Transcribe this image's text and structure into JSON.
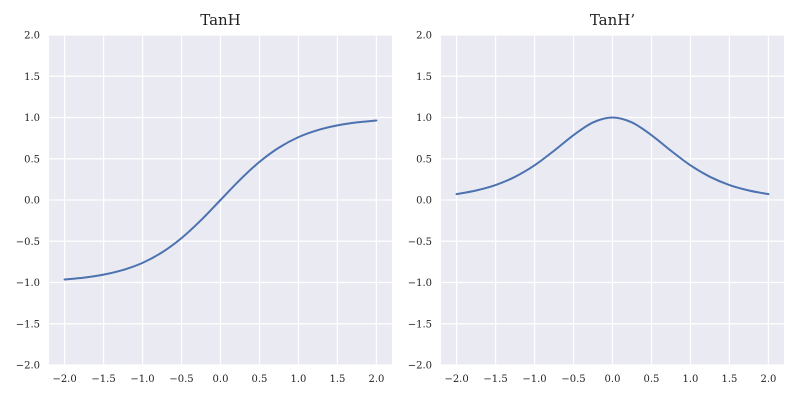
{
  "chart_data": [
    {
      "type": "line",
      "title": "TanH",
      "xlabel": "",
      "ylabel": "",
      "xlim": [
        -2.2,
        2.2
      ],
      "ylim": [
        -2.0,
        2.0
      ],
      "grid": true,
      "xticks": [
        -2.0,
        -1.5,
        -1.0,
        -0.5,
        0.0,
        0.5,
        1.0,
        1.5,
        2.0
      ],
      "xtick_labels": [
        "−2.0",
        "−1.5",
        "−1.0",
        "−0.5",
        "0.0",
        "0.5",
        "1.0",
        "1.5",
        "2.0"
      ],
      "yticks": [
        -2.0,
        -1.5,
        -1.0,
        -0.5,
        0.0,
        0.5,
        1.0,
        1.5,
        2.0
      ],
      "ytick_labels": [
        "−2.0",
        "−1.5",
        "−1.0",
        "−0.5",
        "0.0",
        "0.5",
        "1.0",
        "1.5",
        "2.0"
      ],
      "series": [
        {
          "color": "#4c72b0",
          "x": [
            -2.0,
            -1.75,
            -1.5,
            -1.25,
            -1.0,
            -0.75,
            -0.5,
            -0.25,
            0.0,
            0.25,
            0.5,
            0.75,
            1.0,
            1.25,
            1.5,
            1.75,
            2.0
          ],
          "y": [
            -0.964,
            -0.941,
            -0.905,
            -0.848,
            -0.762,
            -0.635,
            -0.462,
            -0.245,
            0.0,
            0.245,
            0.462,
            0.635,
            0.762,
            0.848,
            0.905,
            0.941,
            0.964
          ]
        }
      ]
    },
    {
      "type": "line",
      "title": "TanH’",
      "xlabel": "",
      "ylabel": "",
      "xlim": [
        -2.2,
        2.2
      ],
      "ylim": [
        -2.0,
        2.0
      ],
      "grid": true,
      "xticks": [
        -2.0,
        -1.5,
        -1.0,
        -0.5,
        0.0,
        0.5,
        1.0,
        1.5,
        2.0
      ],
      "xtick_labels": [
        "−2.0",
        "−1.5",
        "−1.0",
        "−0.5",
        "0.0",
        "0.5",
        "1.0",
        "1.5",
        "2.0"
      ],
      "yticks": [
        -2.0,
        -1.5,
        -1.0,
        -0.5,
        0.0,
        0.5,
        1.0,
        1.5,
        2.0
      ],
      "ytick_labels": [
        "−2.0",
        "−1.5",
        "−1.0",
        "−0.5",
        "0.0",
        "0.5",
        "1.0",
        "1.5",
        "2.0"
      ],
      "series": [
        {
          "color": "#4c72b0",
          "x": [
            -2.0,
            -1.75,
            -1.5,
            -1.25,
            -1.0,
            -0.75,
            -0.5,
            -0.25,
            0.0,
            0.25,
            0.5,
            0.75,
            1.0,
            1.25,
            1.5,
            1.75,
            2.0
          ],
          "y": [
            0.071,
            0.115,
            0.181,
            0.281,
            0.42,
            0.597,
            0.786,
            0.94,
            1.0,
            0.94,
            0.786,
            0.597,
            0.42,
            0.281,
            0.181,
            0.115,
            0.071
          ]
        }
      ]
    }
  ]
}
